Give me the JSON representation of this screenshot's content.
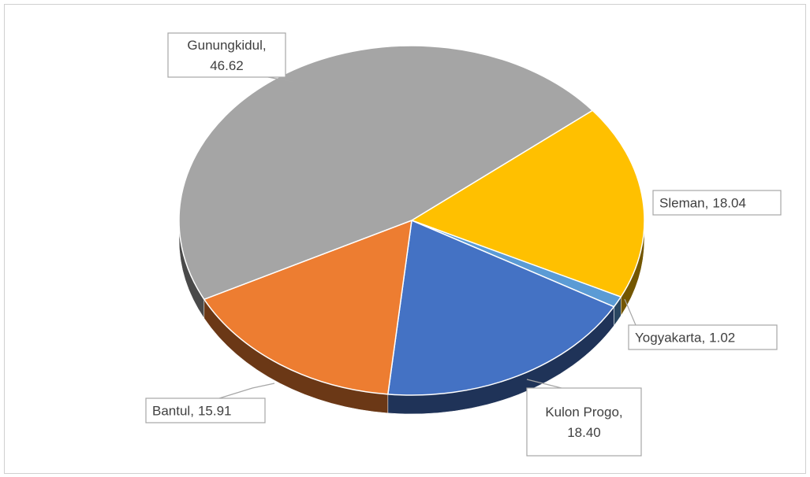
{
  "chart_data": {
    "type": "pie",
    "categories": [
      "Sleman",
      "Yogyakarta",
      "Kulon Progo",
      "Bantul",
      "Gunungkidul"
    ],
    "values": [
      18.04,
      1.02,
      18.4,
      15.91,
      46.62
    ],
    "value_labels": [
      "18.04",
      "1.02",
      "18.40",
      "15.91",
      "46.62"
    ],
    "label_separator": ",",
    "colors": [
      "#ffc000",
      "#5b9bd5",
      "#4472c4",
      "#ed7d31",
      "#a5a5a5"
    ]
  }
}
